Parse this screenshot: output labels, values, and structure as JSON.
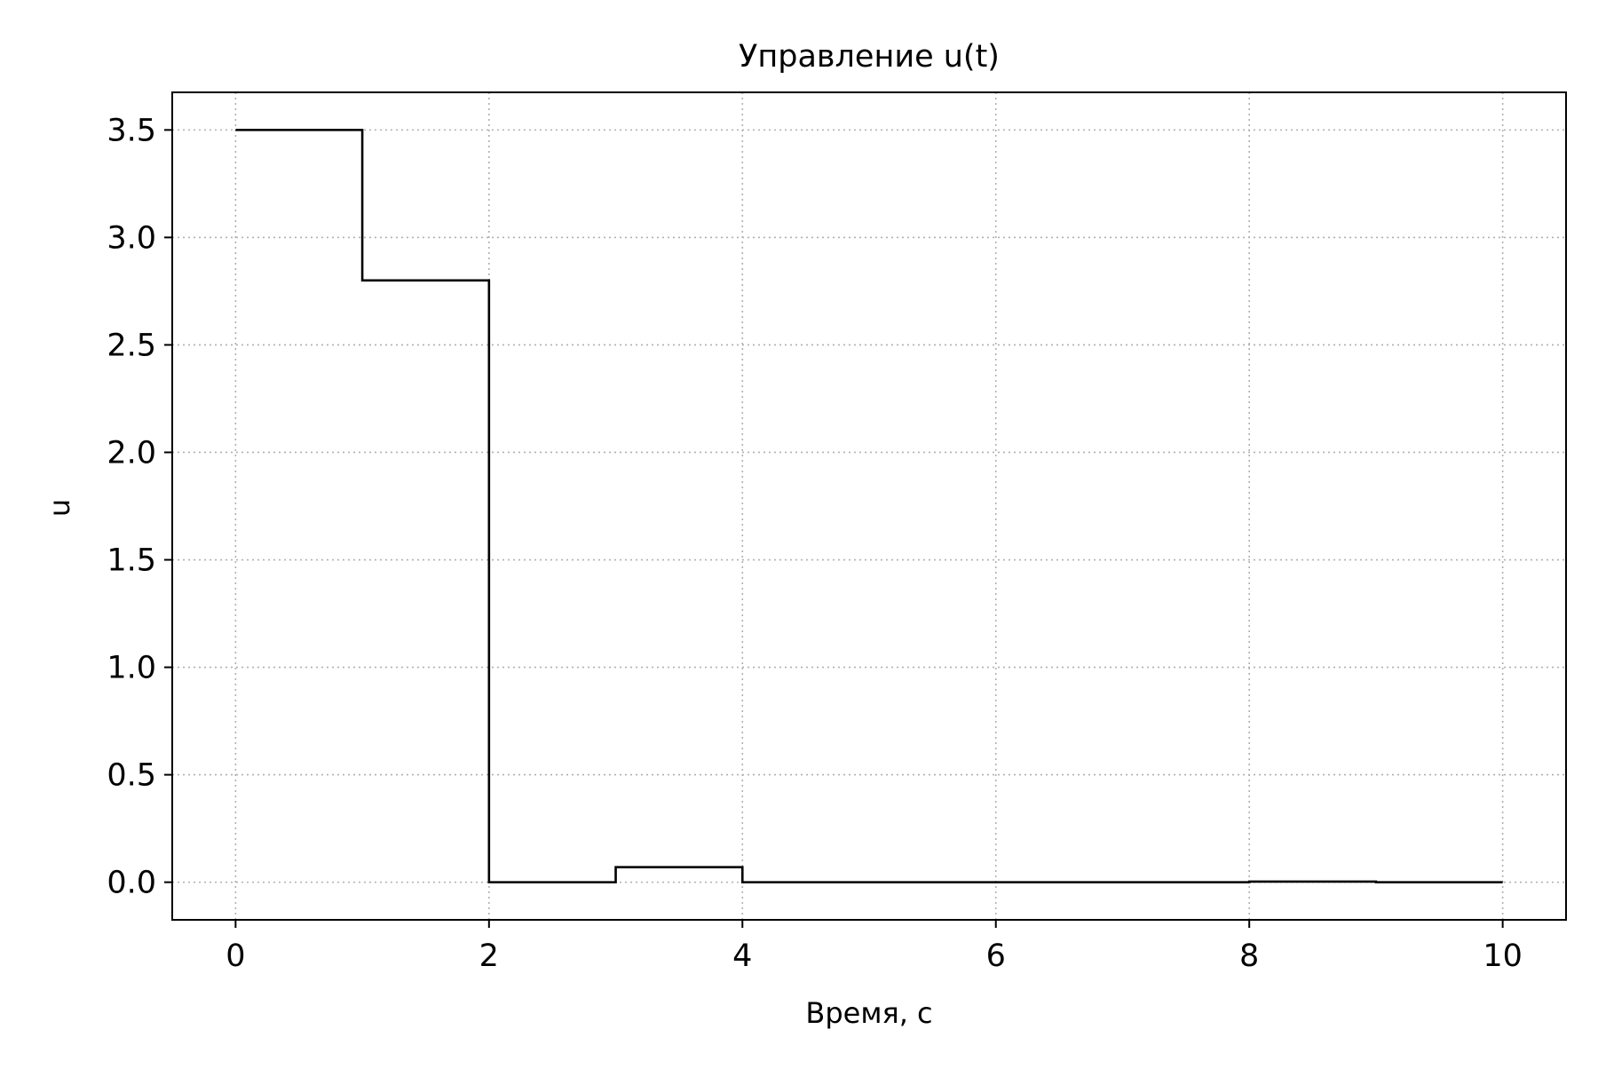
{
  "chart_data": {
    "type": "line",
    "step": "post",
    "title": "Управление u(t)",
    "xlabel": "Время, с",
    "ylabel": "u",
    "xlim": [
      -0.5,
      10.5
    ],
    "ylim": [
      -0.175,
      3.675
    ],
    "xticks": [
      0,
      2,
      4,
      6,
      8,
      10
    ],
    "xtick_labels": [
      "0",
      "2",
      "4",
      "6",
      "8",
      "10"
    ],
    "yticks": [
      0.0,
      0.5,
      1.0,
      1.5,
      2.0,
      2.5,
      3.0,
      3.5
    ],
    "ytick_labels": [
      "0.0",
      "0.5",
      "1.0",
      "1.5",
      "2.0",
      "2.5",
      "3.0",
      "3.5"
    ],
    "grid": true,
    "series": [
      {
        "color": "#000000",
        "x": [
          0,
          1,
          2,
          3,
          4,
          5,
          6,
          7,
          8,
          9,
          10
        ],
        "y": [
          3.5,
          2.8,
          0.0,
          0.07,
          0.0,
          0.0,
          0.0,
          0.0,
          0.003,
          0.0,
          0.0
        ]
      }
    ]
  }
}
